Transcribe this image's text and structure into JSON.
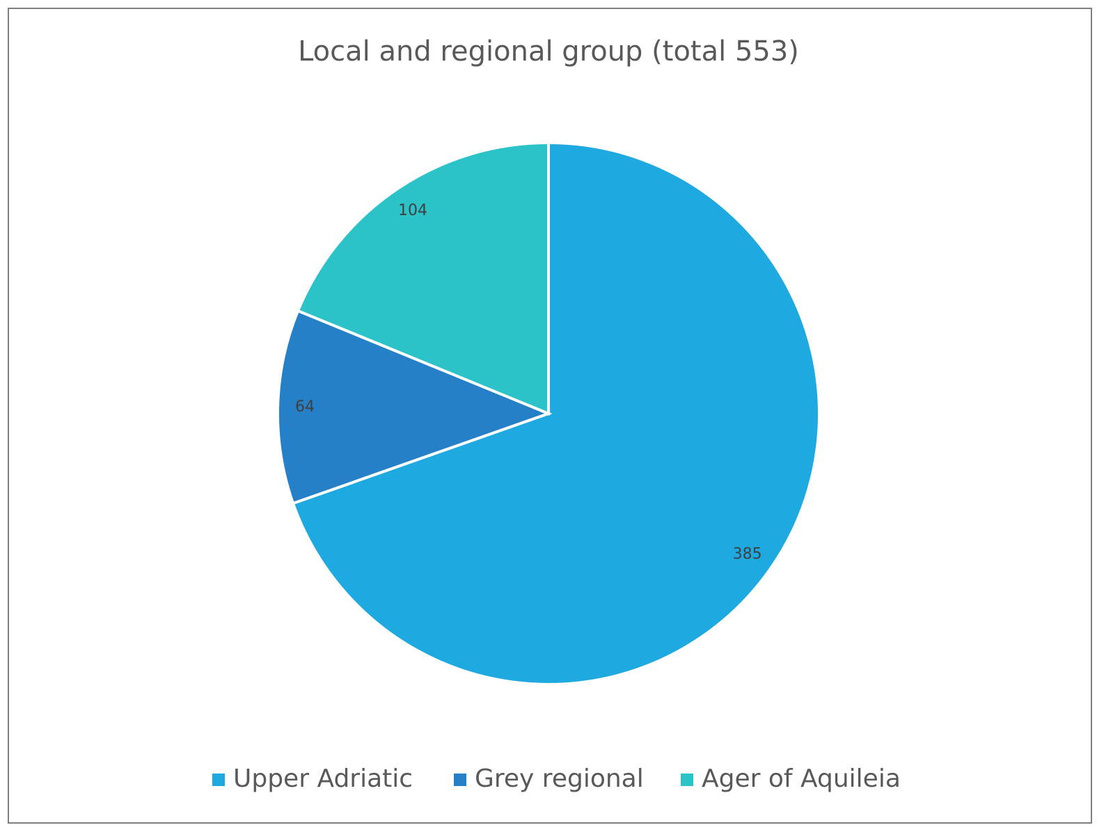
{
  "chart_data": {
    "type": "pie",
    "title": "Local and regional group (total 553)",
    "categories": [
      "Upper Adriatic",
      "Grey regional",
      "Ager of Aquileia"
    ],
    "values": [
      385,
      64,
      104
    ],
    "colors": [
      "#1fa9e1",
      "#2580c8",
      "#2bc2c8"
    ],
    "legend": "bottom"
  }
}
